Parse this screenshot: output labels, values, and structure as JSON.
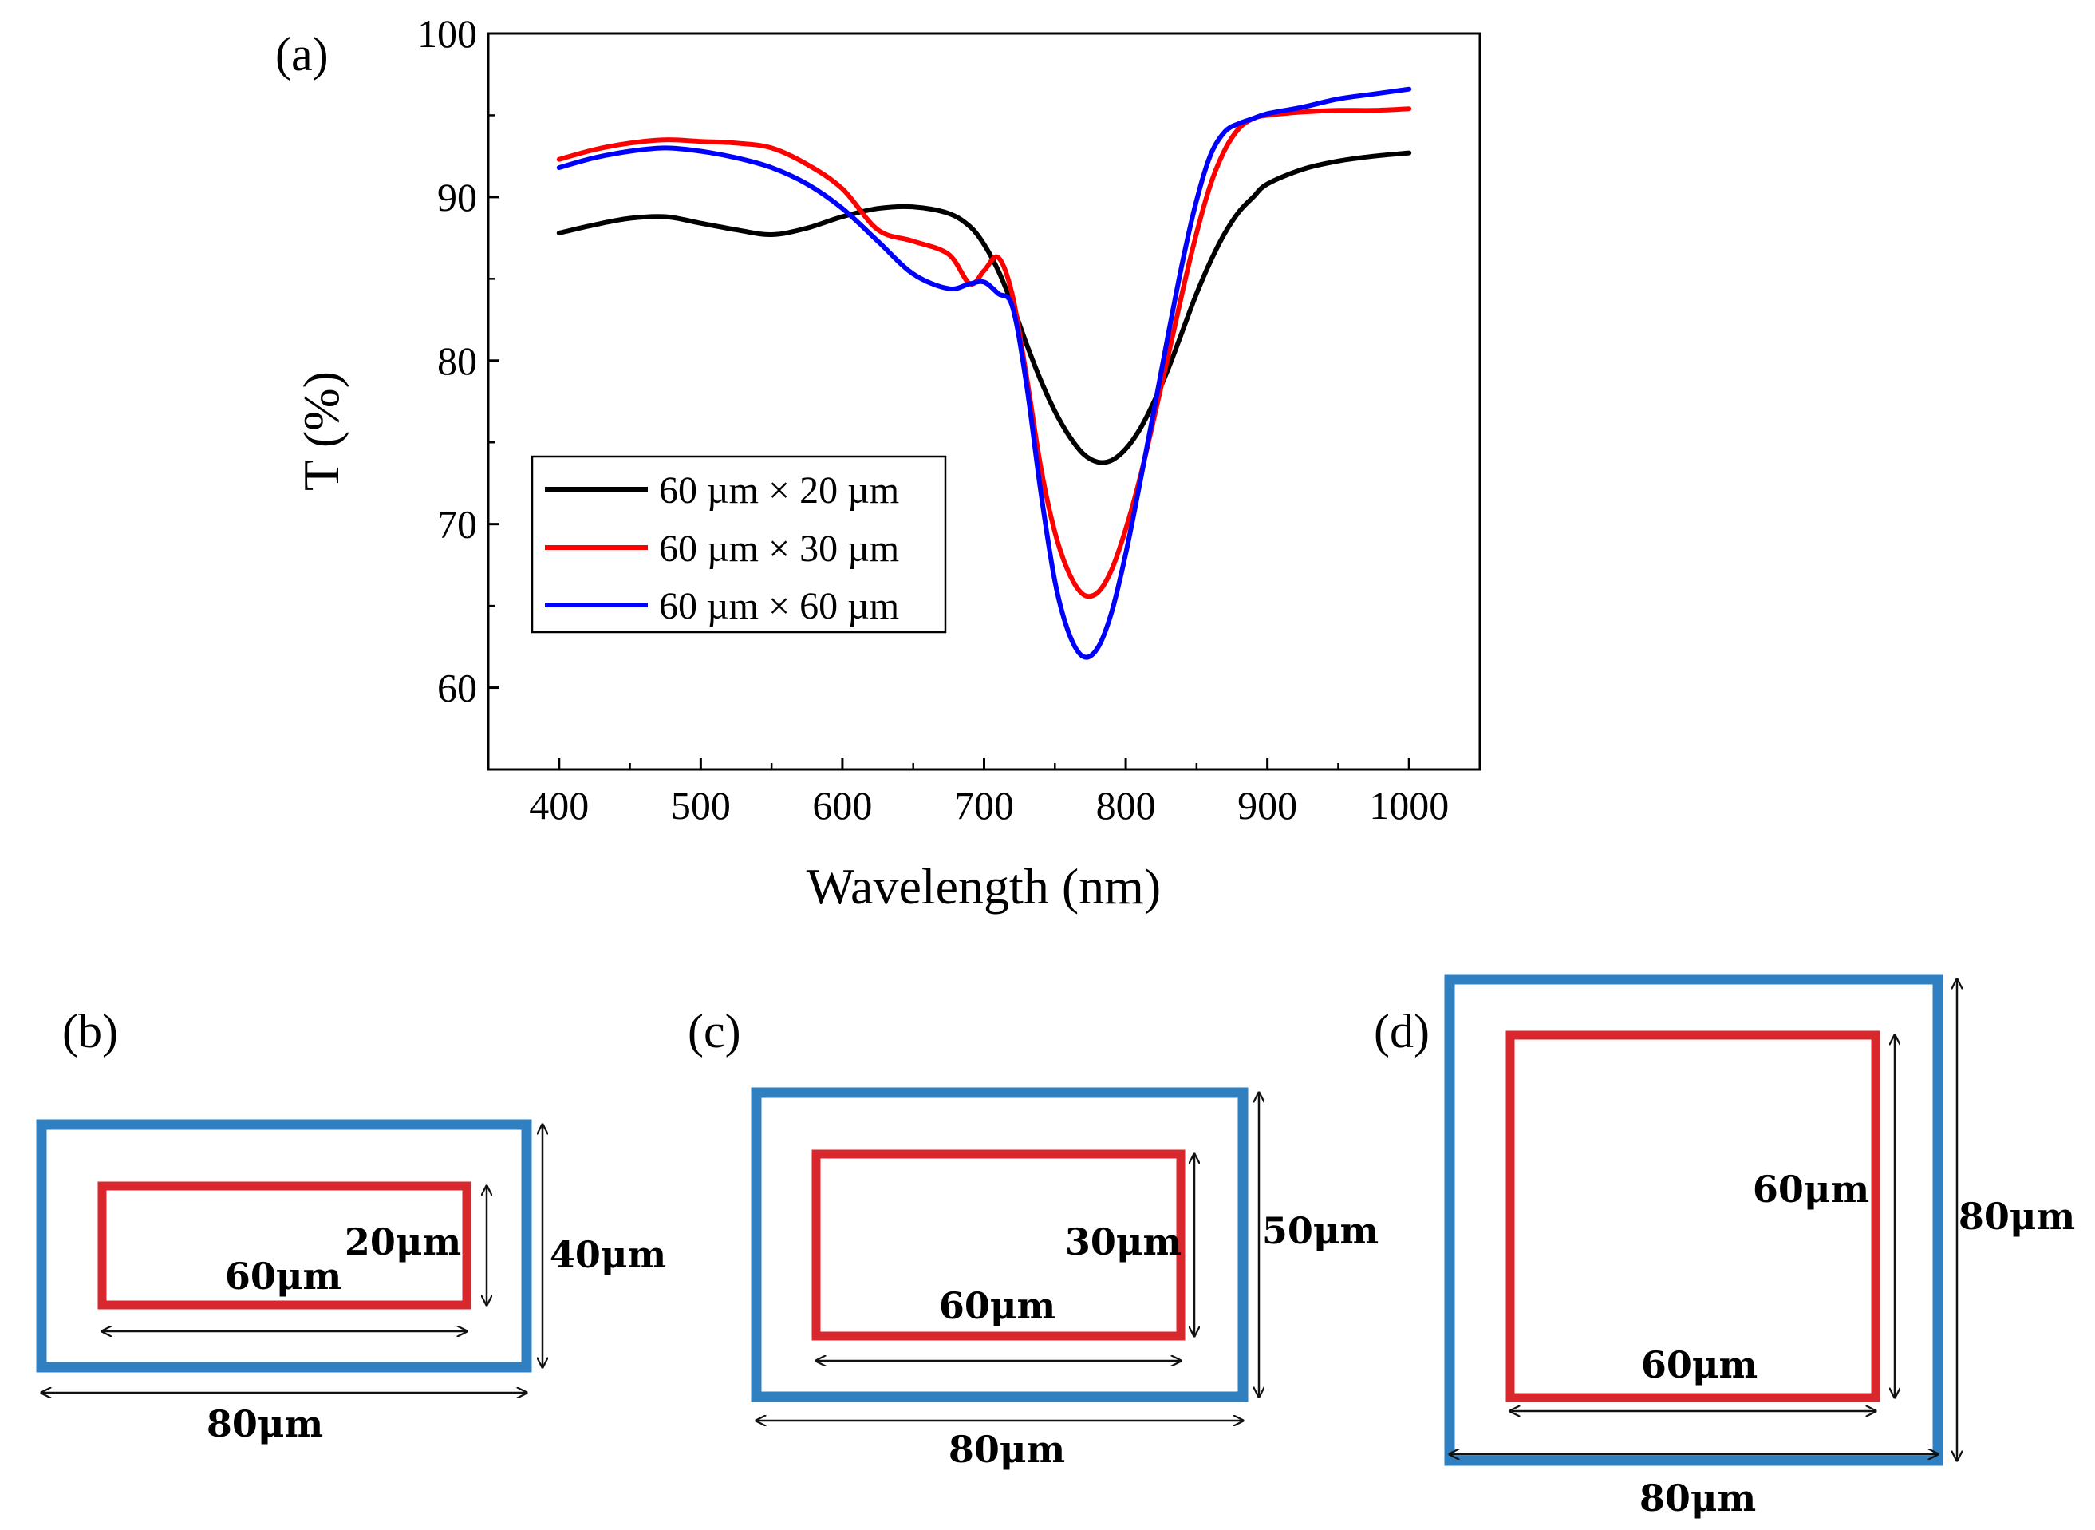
{
  "panels": {
    "a": "(a)",
    "b": "(b)",
    "c": "(c)",
    "d": "(d)"
  },
  "chart_data": {
    "type": "line",
    "title": "",
    "xlabel": "Wavelength (nm)",
    "ylabel": "T (%)",
    "xlim": [
      350,
      1050
    ],
    "ylim": [
      55,
      100
    ],
    "xticks": [
      400,
      500,
      600,
      700,
      800,
      900,
      1000
    ],
    "yticks": [
      60,
      70,
      80,
      90,
      100
    ],
    "legend_position": "lower-left",
    "x": [
      400,
      425,
      450,
      475,
      500,
      525,
      550,
      575,
      600,
      625,
      650,
      675,
      690,
      700,
      710,
      720,
      730,
      740,
      750,
      760,
      770,
      780,
      790,
      800,
      810,
      820,
      830,
      840,
      850,
      860,
      870,
      880,
      890,
      900,
      925,
      950,
      975,
      1000
    ],
    "series": [
      {
        "name": "60 µm × 20 µm",
        "color": "#000000",
        "values": [
          87.8,
          88.3,
          88.7,
          88.8,
          88.4,
          88.0,
          87.7,
          88.1,
          88.8,
          89.3,
          89.4,
          89.0,
          88.2,
          87.1,
          85.5,
          83.4,
          81.0,
          78.8,
          76.9,
          75.4,
          74.3,
          73.8,
          73.9,
          74.6,
          75.8,
          77.5,
          79.5,
          81.8,
          84.1,
          86.1,
          87.8,
          89.1,
          90.0,
          90.8,
          91.7,
          92.2,
          92.5,
          92.7
        ]
      },
      {
        "name": "60 µm × 30 µm",
        "color": "#ff0000",
        "values": [
          92.3,
          92.9,
          93.3,
          93.5,
          93.4,
          93.3,
          93.0,
          92.0,
          90.5,
          88.0,
          87.3,
          86.5,
          84.7,
          85.5,
          86.3,
          84.0,
          79.0,
          73.5,
          69.5,
          67.0,
          65.7,
          65.8,
          67.2,
          69.7,
          72.8,
          76.5,
          80.3,
          84.2,
          87.8,
          90.8,
          92.9,
          94.2,
          94.8,
          95.0,
          95.2,
          95.3,
          95.3,
          95.4
        ]
      },
      {
        "name": "60 µm × 60 µm",
        "color": "#0000ff",
        "values": [
          91.8,
          92.4,
          92.8,
          93.0,
          92.8,
          92.4,
          91.8,
          90.8,
          89.3,
          87.3,
          85.3,
          84.4,
          84.7,
          84.8,
          84.1,
          83.3,
          78.5,
          72.0,
          66.5,
          63.3,
          61.9,
          62.4,
          64.6,
          68.2,
          72.5,
          77.0,
          81.6,
          86.0,
          89.8,
          92.6,
          94.0,
          94.5,
          94.8,
          95.1,
          95.5,
          96.0,
          96.3,
          96.6
        ]
      }
    ]
  },
  "diagrams": {
    "b": {
      "inner_width": "60μm",
      "inner_height": "20μm",
      "outer_height": "40μm",
      "outer_width": "80μm"
    },
    "c": {
      "inner_width": "60μm",
      "inner_height": "30μm",
      "outer_height": "50μm",
      "outer_width": "80μm"
    },
    "d": {
      "inner_width": "60μm",
      "inner_height": "60μm",
      "outer_height": "80μm",
      "outer_width": "80μm"
    }
  },
  "colors": {
    "outer_frame": "#2f7fc1",
    "inner_frame": "#d9272e",
    "dimension_line": "#111111"
  }
}
